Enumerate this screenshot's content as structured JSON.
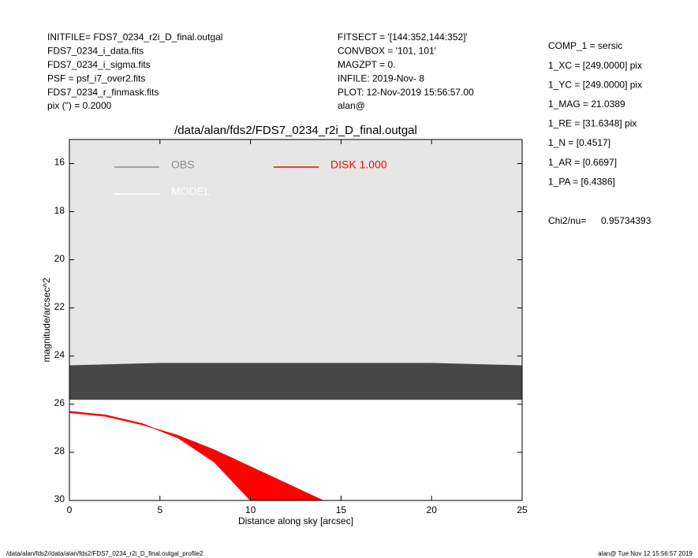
{
  "header": {
    "left": [
      "INITFILE= FDS7_0234_r2i_D_final.outgal",
      "FDS7_0234_i_data.fits",
      "FDS7_0234_i_sigma.fits",
      "PSF     = psf_i7_over2.fits",
      "FDS7_0234_r_finmask.fits",
      "pix (\") =  0.2000"
    ],
    "middle": [
      "FITSECT = '[144:352,144:352]'",
      "CONVBOX = '101, 101'",
      "MAGZPT  =              0.",
      "INFILE: 2019-Nov- 8",
      "PLOT: 12-Nov-2019 15:56:57.00",
      "alan@"
    ],
    "right": [
      "COMP_1  = sersic",
      "1_XC    = [249.0000] pix",
      "1_YC    = [249.0000] pix",
      "1_MAG   = 21.0389",
      "1_RE    = [31.6348] pix",
      "1_N     = [0.4517]",
      "1_AR    = [0.6697]",
      "1_PA    = [6.4386]"
    ],
    "chi2_label": "Chi2/nu=",
    "chi2_value": "0.95734393"
  },
  "footer": {
    "left": "/data/alan/fds2//data/alan/fds2/FDS7_0234_r2i_D_final.outgal_profile2",
    "right": "alan@  Tue Nov 12 15:56:57 2019"
  },
  "chart_data": {
    "type": "band",
    "title": "/data/alan/fds2/FDS7_0234_r2i_D_final.outgal",
    "xlabel": "Distance along sky [arcsec]",
    "ylabel": "magnitude/arcsec^2",
    "xlim": [
      0,
      25
    ],
    "ylim": [
      30,
      15
    ],
    "xticks": [
      0,
      5,
      10,
      15,
      20,
      25
    ],
    "yticks": [
      16,
      18,
      20,
      22,
      24,
      26,
      28,
      30
    ],
    "background": "#e6e6e6",
    "series": [
      {
        "name": "MODEL",
        "color": "#ffffff",
        "fill": "#ffffff",
        "bright": {
          "x": [
            0,
            25
          ],
          "y": [
            25.3,
            25.3
          ]
        },
        "faint": {
          "x": [
            0,
            25
          ],
          "y": [
            30,
            30
          ]
        }
      },
      {
        "name": "OBS",
        "color": "#8c8c8c",
        "fill": "#474747",
        "bright": {
          "x": [
            0,
            5,
            10,
            15,
            20,
            25
          ],
          "y": [
            24.4,
            24.3,
            24.3,
            24.3,
            24.3,
            24.4
          ]
        },
        "faint": {
          "x": [
            0,
            5,
            10,
            15,
            20,
            25
          ],
          "y": [
            25.8,
            25.8,
            25.8,
            25.8,
            25.8,
            25.8
          ]
        }
      },
      {
        "name": "DISK  1.000",
        "color": "#ff0000",
        "fill": "#ff0000",
        "bright": {
          "x": [
            0,
            2,
            4,
            6,
            8,
            10
          ],
          "y": [
            26.3,
            26.45,
            26.8,
            27.4,
            28.4,
            30
          ]
        },
        "faint": {
          "x": [
            0,
            2,
            4,
            6,
            8,
            10,
            12,
            14
          ],
          "y": [
            26.35,
            26.5,
            26.85,
            27.3,
            27.9,
            28.6,
            29.3,
            30
          ]
        }
      }
    ]
  }
}
